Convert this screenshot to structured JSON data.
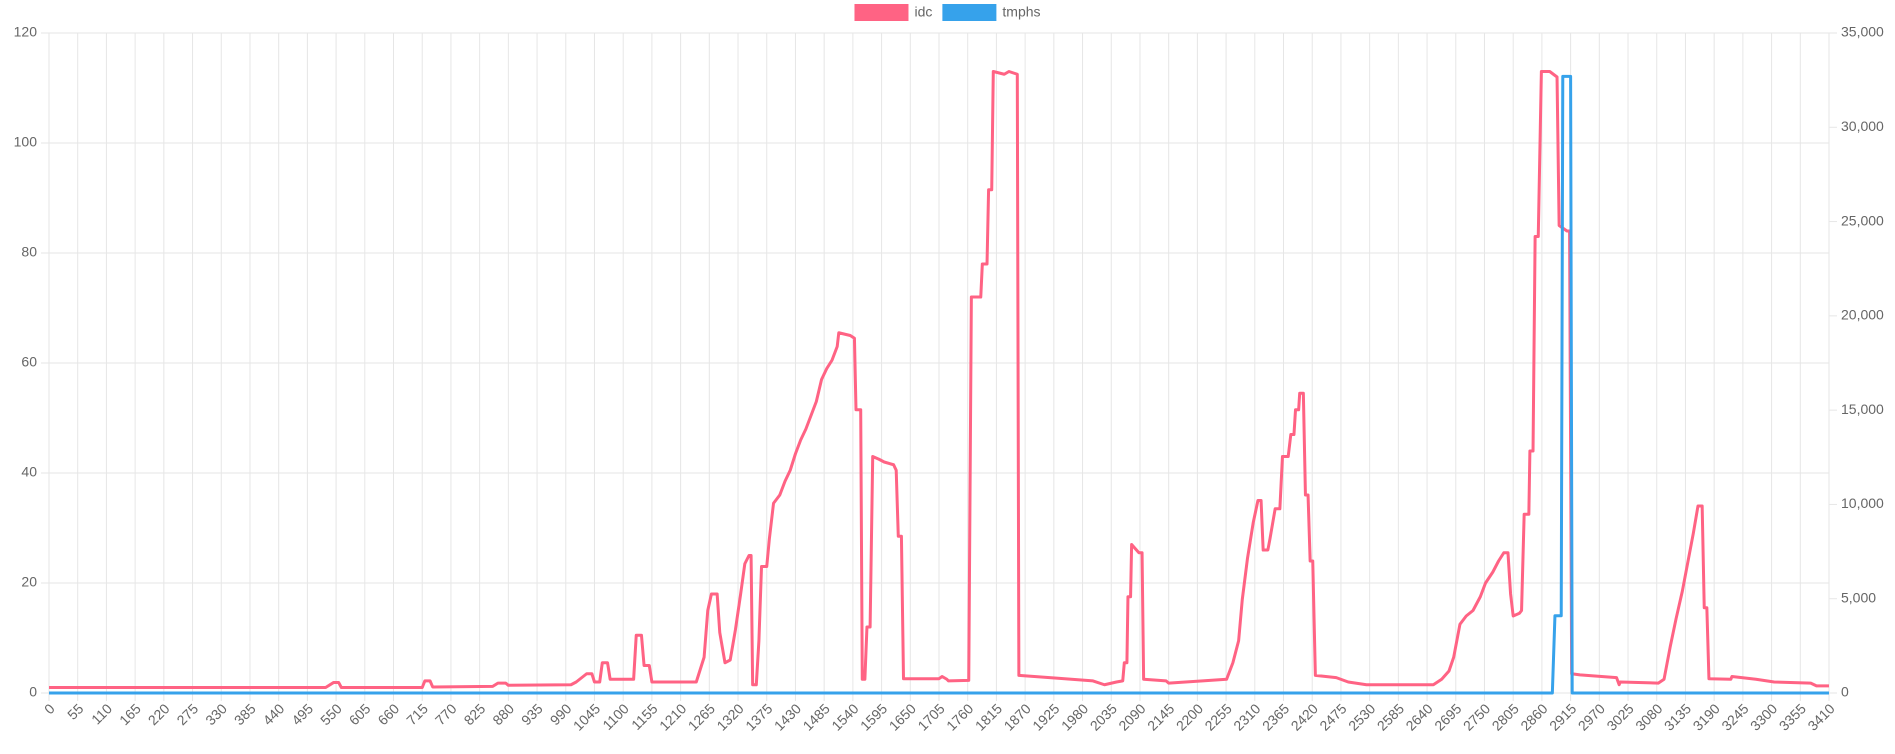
{
  "chart_data": {
    "type": "line",
    "series": [
      {
        "name": "idc",
        "color": "#ff6384",
        "axis": "y",
        "x": [
          0,
          530,
          545,
          555,
          560,
          715,
          720,
          730,
          735,
          850,
          860,
          875,
          880,
          1000,
          1010,
          1030,
          1040,
          1045,
          1055,
          1060,
          1070,
          1075,
          1120,
          1125,
          1135,
          1140,
          1150,
          1155,
          1240,
          1245,
          1255,
          1262,
          1269,
          1280,
          1285,
          1295,
          1305,
          1315,
          1325,
          1333,
          1341,
          1345,
          1348,
          1355,
          1360,
          1365,
          1375,
          1380,
          1388,
          1400,
          1410,
          1420,
          1430,
          1440,
          1450,
          1460,
          1470,
          1480,
          1490,
          1500,
          1510,
          1513,
          1535,
          1543,
          1546,
          1555,
          1558,
          1563,
          1567,
          1573,
          1578,
          1590,
          1600,
          1618,
          1623,
          1627,
          1633,
          1637,
          1705,
          1711,
          1720,
          1723,
          1762,
          1767,
          1785,
          1788,
          1797,
          1800,
          1806,
          1809,
          1830,
          1839,
          1855,
          1858,
          1930,
          2000,
          2022,
          2045,
          2057,
          2060,
          2065,
          2067,
          2072,
          2074,
          2088,
          2094,
          2097,
          2140,
          2145,
          2210,
          2256,
          2268,
          2279,
          2286,
          2296,
          2307,
          2316,
          2322,
          2326,
          2335,
          2339,
          2349,
          2358,
          2363,
          2374,
          2379,
          2385,
          2388,
          2394,
          2396,
          2403,
          2407,
          2412,
          2416,
          2421,
          2426,
          2466,
          2489,
          2524,
          2652,
          2668,
          2682,
          2691,
          2703,
          2715,
          2728,
          2742,
          2752,
          2766,
          2777,
          2787,
          2795,
          2800,
          2805,
          2817,
          2821,
          2826,
          2835,
          2837,
          2843,
          2847,
          2853,
          2859,
          2875,
          2889,
          2893,
          2908,
          2913,
          2917,
          2933,
          3003,
          3008,
          3010,
          3083,
          3094,
          3106,
          3117,
          3129,
          3141,
          3150,
          3159,
          3167,
          3171,
          3176,
          3180,
          3222,
          3224,
          3270,
          3305,
          3375,
          3386,
          3410
        ],
        "values": [
          1,
          1,
          1.9,
          1.9,
          1,
          1,
          2.2,
          2.2,
          1.1,
          1.2,
          1.8,
          1.8,
          1.4,
          1.5,
          2,
          3.5,
          3.5,
          2,
          2,
          5.5,
          5.5,
          2.5,
          2.5,
          10.5,
          10.5,
          5,
          5,
          2,
          2,
          3.5,
          6.5,
          15,
          18,
          18,
          11,
          5.5,
          6,
          11.5,
          18,
          23.5,
          25,
          25,
          1.5,
          1.5,
          9.5,
          23,
          23,
          28,
          34.5,
          36,
          38.5,
          40.5,
          43.5,
          46,
          48,
          50.5,
          53,
          57,
          59,
          60.5,
          63,
          65.5,
          65,
          64.5,
          51.5,
          51.5,
          2.5,
          2.5,
          12,
          12,
          43,
          42.5,
          42,
          41.5,
          40.5,
          28.5,
          28.5,
          2.6,
          2.6,
          3,
          2.5,
          2.2,
          2.3,
          72,
          72,
          78,
          78,
          91.5,
          91.5,
          113,
          112.5,
          113,
          112.5,
          3.2,
          2.7,
          2.2,
          1.5,
          2,
          2.2,
          5.5,
          5.5,
          17.5,
          17.5,
          27,
          25.5,
          25.5,
          2.5,
          2.2,
          1.8,
          2.2,
          2.5,
          5.5,
          9.5,
          17,
          24.5,
          31,
          35,
          35,
          26,
          26,
          28,
          33.5,
          33.5,
          43,
          43,
          47,
          47,
          51.5,
          51.5,
          54.5,
          54.5,
          36,
          36,
          24,
          24,
          3.2,
          2.8,
          2,
          1.5,
          1.5,
          2.5,
          4,
          6.5,
          12.5,
          14,
          15,
          17.5,
          20,
          22,
          24,
          25.5,
          25.5,
          18,
          14,
          14.5,
          15,
          32.5,
          32.5,
          44,
          44,
          83,
          83,
          113,
          113,
          112,
          85,
          84,
          84,
          3.5,
          3.3,
          2.8,
          1.5,
          2,
          1.8,
          2.5,
          8.5,
          13.5,
          18.5,
          24.5,
          29,
          34,
          34,
          15.5,
          15.5,
          2.6,
          2.5,
          3,
          2.5,
          2,
          1.8,
          1.3,
          1.3
        ]
      },
      {
        "name": "tmphs",
        "color": "#36a2eb",
        "axis": "y2",
        "x": [
          0,
          2880,
          2885,
          2897,
          2900,
          2915,
          2918,
          3410
        ],
        "values": [
          0,
          0,
          4100,
          4100,
          32700,
          32700,
          0,
          0
        ]
      }
    ],
    "xlim": [
      0,
      3410
    ],
    "xticks": [
      0,
      55,
      110,
      165,
      220,
      275,
      330,
      385,
      440,
      495,
      550,
      605,
      660,
      715,
      770,
      825,
      880,
      935,
      990,
      1045,
      1100,
      1155,
      1210,
      1265,
      1320,
      1375,
      1430,
      1485,
      1540,
      1595,
      1650,
      1705,
      1760,
      1815,
      1870,
      1925,
      1980,
      2035,
      2090,
      2145,
      2200,
      2255,
      2310,
      2365,
      2420,
      2475,
      2530,
      2585,
      2640,
      2695,
      2750,
      2805,
      2860,
      2915,
      2970,
      3025,
      3080,
      3135,
      3190,
      3245,
      3300,
      3355,
      3410
    ],
    "ylim": [
      0,
      120
    ],
    "yticks": [
      0,
      20,
      40,
      60,
      80,
      100,
      120
    ],
    "y2lim": [
      0,
      35000
    ],
    "y2ticks": [
      0,
      {
        "value": 5000,
        "label": "5,000"
      },
      {
        "value": 10000,
        "label": "10,000"
      },
      {
        "value": 15000,
        "label": "15,000"
      },
      {
        "value": 20000,
        "label": "20,000"
      },
      {
        "value": 25000,
        "label": "25,000"
      },
      {
        "value": 30000,
        "label": "30,000"
      },
      {
        "value": 35000,
        "label": "35,000"
      }
    ],
    "grid": true,
    "legend": "top"
  }
}
